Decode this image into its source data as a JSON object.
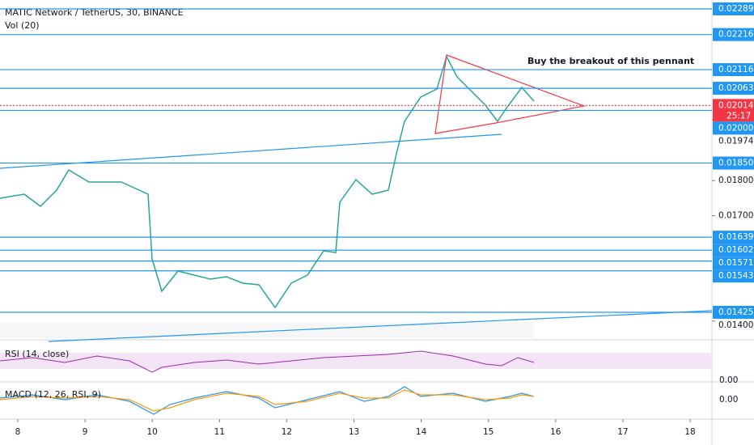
{
  "header": {
    "title": "MATIC Network / TetherUS, 30, BINANCE",
    "volume": "Vol (20)"
  },
  "annotation": "Buy the breakout of this pennant",
  "levels": [
    0.02289,
    0.02216,
    0.02116,
    0.02063,
    {
      "value": 0.02,
      "label": "0.02000"
    },
    {
      "value": 0.0185,
      "label": "0.01850"
    },
    0.01639,
    0.01602,
    0.01571,
    0.01543,
    0.01425
  ],
  "ticks": [
    0.01974,
    {
      "value": 0.018,
      "label": "0.01800"
    },
    {
      "value": 0.017,
      "label": "0.01700"
    },
    {
      "value": 0.014,
      "label": "0.01400"
    }
  ],
  "current_price": {
    "value": 0.02014,
    "countdown": "25:17"
  },
  "dates": [
    8,
    9,
    10,
    11,
    12,
    13,
    14,
    15,
    16,
    17,
    18
  ],
  "rsi": {
    "title": "RSI (14, close)",
    "tick": "0.00"
  },
  "macd": {
    "title": "MACD (12, 26, RSI, 9)",
    "tick": "0.00"
  }
}
